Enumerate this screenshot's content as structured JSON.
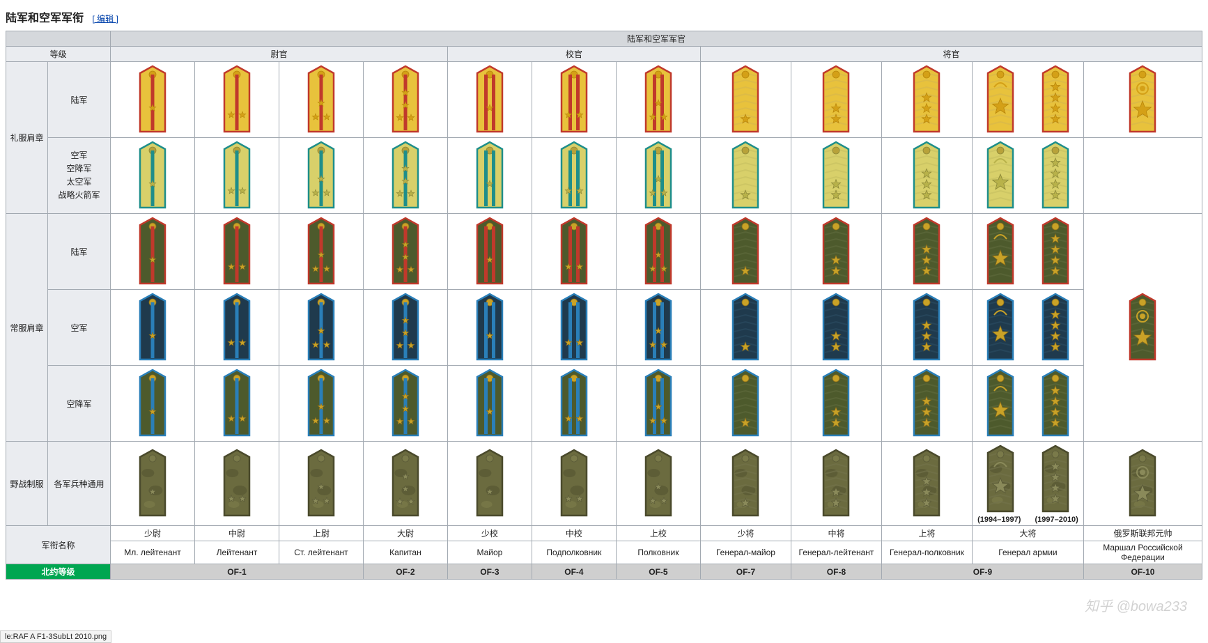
{
  "heading": {
    "title": "陆军和空军军衔",
    "edit": "[ 编辑 ]"
  },
  "superheader": "陆军和空军军官",
  "level_header": "等级",
  "group_headers": {
    "junior": "尉官",
    "senior": "校官",
    "general": "将官"
  },
  "row_labels": {
    "dress": "礼服肩章",
    "army_dress": "陆军",
    "af_dress_combined": "空军\n空降军\n太空军\n战略火箭军",
    "service": "常服肩章",
    "army_svc": "陆军",
    "af_svc": "空军",
    "abn_svc": "空降军",
    "field": "野战制服",
    "field_sub": "各军兵种通用",
    "rank_name": "军衔名称",
    "nato": "北约等级"
  },
  "year_notes": {
    "left": "(1994–1997)",
    "right": "(1997–2010)"
  },
  "ranks_cn": [
    "少尉",
    "中尉",
    "上尉",
    "大尉",
    "少校",
    "中校",
    "上校",
    "少将",
    "中将",
    "上将",
    "大将",
    "俄罗斯联邦元帅"
  ],
  "ranks_ru": [
    "Мл. лейтенант",
    "Лейтенант",
    "Ст. лейтенант",
    "Капитан",
    "Майор",
    "Подполковник",
    "Полковник",
    "Генерал-майор",
    "Генерал-лейтенант",
    "Генерал-полковник",
    "Генерал армии",
    "Маршал Российской Федерации"
  ],
  "nato": [
    "OF-1",
    "OF-1",
    "OF-1",
    "OF-2",
    "OF-3",
    "OF-4",
    "OF-5",
    "OF-7",
    "OF-8",
    "OF-9",
    "OF-9",
    "OF-10"
  ],
  "insignia": {
    "stripe_stars": [
      {
        "stripes": 1,
        "stars": 1,
        "layout": "single"
      },
      {
        "stripes": 1,
        "stars": 2,
        "layout": "row"
      },
      {
        "stripes": 1,
        "stars": 3,
        "layout": "tri"
      },
      {
        "stripes": 1,
        "stars": 4,
        "layout": "quad"
      },
      {
        "stripes": 2,
        "stars": 1,
        "layout": "single"
      },
      {
        "stripes": 2,
        "stars": 2,
        "layout": "row"
      },
      {
        "stripes": 2,
        "stars": 3,
        "layout": "tri"
      }
    ],
    "generals": [
      {
        "stars": 1,
        "zig": true
      },
      {
        "stars": 2,
        "zig": true
      },
      {
        "stars": 3,
        "zig": true
      },
      {
        "stars": 4,
        "zig": true,
        "wreath": false,
        "bigstar": true
      },
      {
        "marshal": true,
        "zig": true
      }
    ]
  },
  "palettes": {
    "army_dress": {
      "base": "#e8c23c",
      "border": "#c0392b",
      "stripe": "#c0392b",
      "star": "#d4a017",
      "star_edge": "#b8860b",
      "button": "#d4a017",
      "zig": "#d9b84a"
    },
    "af_dress": {
      "base": "#d8d06a",
      "border": "#1e8e8a",
      "stripe": "#1e8e8a",
      "star": "#b8b24a",
      "star_edge": "#8a8638",
      "button": "#b8a23a",
      "zig": "#c9c263"
    },
    "army_svc": {
      "base": "#4d5a2c",
      "border": "#c0392b",
      "stripe": "#c0392b",
      "star": "#c9a227",
      "star_edge": "#8a6d1a",
      "button": "#c9a227",
      "zig": "#5c683a"
    },
    "af_svc": {
      "base": "#1f3a4d",
      "border": "#2a7fb8",
      "stripe": "#2a7fb8",
      "star": "#c9a227",
      "star_edge": "#8a6d1a",
      "button": "#c9a227",
      "zig": "#2a4a60"
    },
    "abn_svc": {
      "base": "#4d5a2c",
      "border": "#2a7fb8",
      "stripe": "#2a7fb8",
      "star": "#c9a227",
      "star_edge": "#8a6d1a",
      "button": "#c9a227",
      "zig": "#5c683a"
    },
    "field": {
      "base": "#6b6b3f",
      "border": "#4a4a2c",
      "stripe": "none",
      "star": "#8a8a5a",
      "star_edge": "#5a5a38",
      "button": "#7a7a4a",
      "zig": "#72724a",
      "camo": true
    }
  },
  "dims": {
    "w": 44,
    "h": 100
  },
  "watermark": "知乎 @bowa233",
  "footer_file": "le:RAF A F1-3SubLt 2010.png"
}
